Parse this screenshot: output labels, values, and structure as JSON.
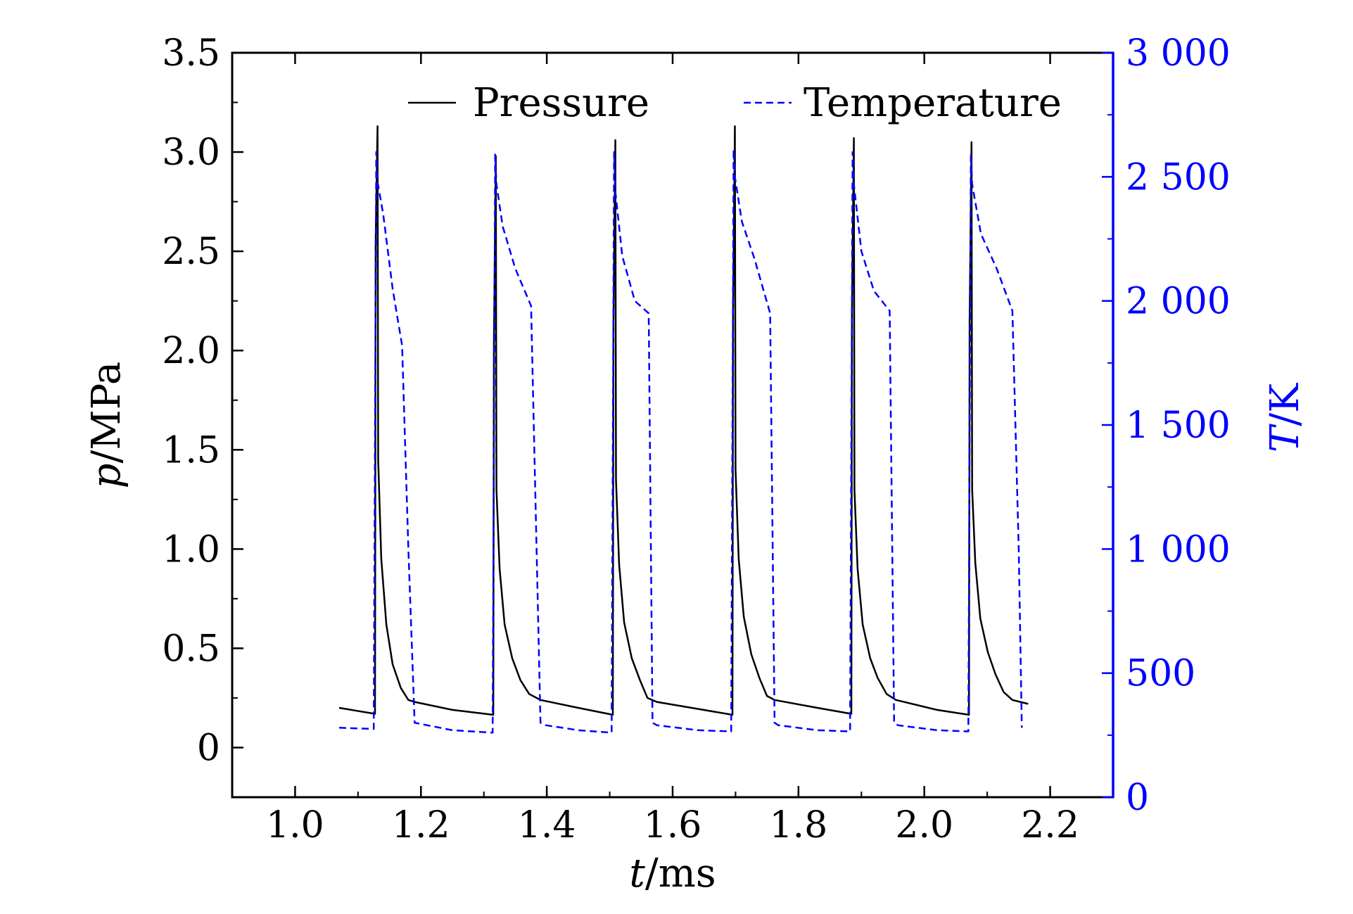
{
  "chart_data": {
    "type": "line",
    "xlabel": {
      "italic": "t",
      "rest": "/ms"
    },
    "ylabel_left": {
      "italic": "p",
      "rest": "/MPa"
    },
    "ylabel_right": {
      "italic": "T",
      "rest": "/K"
    },
    "xlim": [
      0.9,
      2.3
    ],
    "ylim_left": [
      -0.25,
      3.5
    ],
    "ylim_right": [
      0,
      3000
    ],
    "x_ticks": [
      "1.0",
      "1.2",
      "1.4",
      "1.6",
      "1.8",
      "2.0",
      "2.2"
    ],
    "y_left_ticks": [
      "0",
      "0.5",
      "1.0",
      "1.5",
      "2.0",
      "2.5",
      "3.0",
      "3.5"
    ],
    "y_right_ticks": [
      "0",
      "500",
      "1 000",
      "1 500",
      "2 000",
      "2 500",
      "3 000"
    ],
    "grid": false,
    "legend_position": "top",
    "colors": {
      "pressure": "#000000",
      "temperature": "#0000ff",
      "right_axis": "#0000ff"
    },
    "series": [
      {
        "name": "Pressure",
        "axis": "left",
        "style": "solid",
        "x": [
          1.07,
          1.127,
          1.128,
          1.131,
          1.132,
          1.137,
          1.145,
          1.155,
          1.168,
          1.18,
          1.19,
          1.25,
          1.315,
          1.316,
          1.319,
          1.32,
          1.325,
          1.333,
          1.345,
          1.358,
          1.372,
          1.39,
          1.45,
          1.505,
          1.506,
          1.509,
          1.51,
          1.515,
          1.523,
          1.535,
          1.548,
          1.56,
          1.575,
          1.64,
          1.695,
          1.696,
          1.699,
          1.7,
          1.705,
          1.713,
          1.725,
          1.738,
          1.75,
          1.762,
          1.83,
          1.884,
          1.885,
          1.888,
          1.889,
          1.894,
          1.902,
          1.914,
          1.926,
          1.94,
          1.955,
          2.02,
          2.071,
          2.072,
          2.075,
          2.076,
          2.081,
          2.089,
          2.101,
          2.113,
          2.126,
          2.14,
          2.165
        ],
        "values": [
          0.2,
          0.17,
          2.55,
          3.13,
          1.45,
          0.95,
          0.62,
          0.42,
          0.3,
          0.24,
          0.23,
          0.19,
          0.165,
          2.05,
          2.98,
          1.3,
          0.9,
          0.62,
          0.45,
          0.34,
          0.27,
          0.24,
          0.2,
          0.165,
          2.15,
          3.06,
          1.35,
          0.92,
          0.63,
          0.45,
          0.34,
          0.25,
          0.23,
          0.195,
          0.165,
          2.2,
          3.13,
          1.4,
          0.95,
          0.66,
          0.47,
          0.35,
          0.26,
          0.24,
          0.2,
          0.17,
          2.2,
          3.07,
          1.3,
          0.9,
          0.62,
          0.45,
          0.35,
          0.27,
          0.24,
          0.19,
          0.165,
          2.15,
          3.05,
          1.3,
          0.93,
          0.65,
          0.48,
          0.37,
          0.28,
          0.24,
          0.22
        ]
      },
      {
        "name": "Temperature",
        "axis": "right",
        "style": "dashed",
        "x": [
          1.07,
          1.125,
          1.129,
          1.131,
          1.14,
          1.155,
          1.17,
          1.18,
          1.19,
          1.25,
          1.314,
          1.318,
          1.32,
          1.33,
          1.35,
          1.375,
          1.39,
          1.398,
          1.45,
          1.503,
          1.507,
          1.509,
          1.52,
          1.54,
          1.562,
          1.568,
          1.575,
          1.64,
          1.693,
          1.697,
          1.699,
          1.71,
          1.73,
          1.755,
          1.762,
          1.768,
          1.83,
          1.882,
          1.886,
          1.888,
          1.9,
          1.92,
          1.945,
          1.952,
          1.958,
          2.02,
          2.07,
          2.074,
          2.076,
          2.09,
          2.115,
          2.14,
          2.15,
          2.155
        ],
        "values": [
          280,
          275,
          2600,
          2480,
          2350,
          2050,
          1820,
          1000,
          300,
          270,
          260,
          2590,
          2470,
          2300,
          2130,
          1980,
          300,
          290,
          270,
          260,
          2600,
          2440,
          2180,
          2000,
          1950,
          300,
          290,
          270,
          265,
          2610,
          2500,
          2320,
          2170,
          1950,
          300,
          290,
          270,
          265,
          2600,
          2470,
          2200,
          2040,
          1960,
          300,
          290,
          270,
          265,
          2590,
          2470,
          2270,
          2130,
          1960,
          1000,
          280
        ]
      }
    ]
  }
}
